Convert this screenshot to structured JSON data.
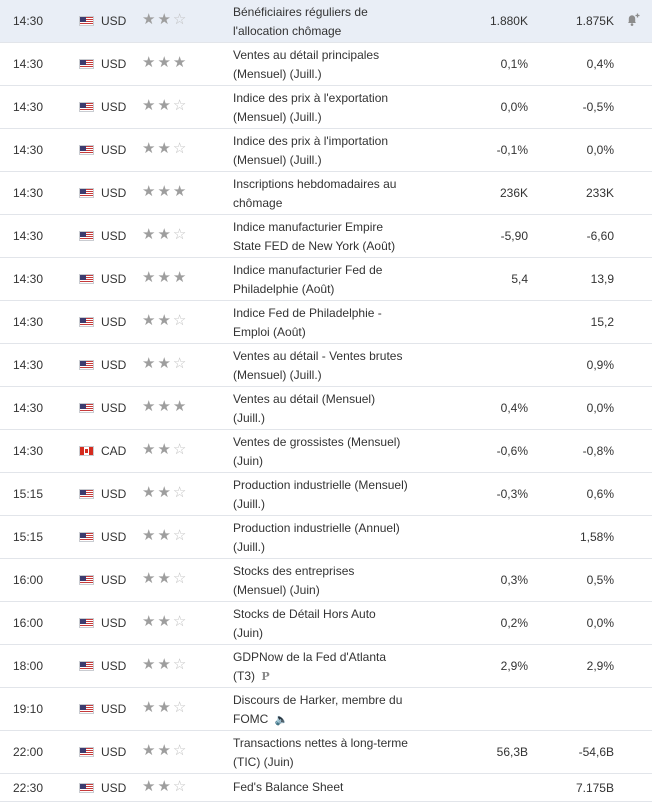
{
  "calendar": {
    "rows": [
      {
        "time": "14:30",
        "currency": "USD",
        "flag": "us",
        "stars": 2,
        "event_line1": "Bénéficiaires réguliers de",
        "event_line2": "l'allocation chômage",
        "tag": "",
        "actual": "1.880K",
        "forecast": "1.875K",
        "alert": true,
        "highlight": true
      },
      {
        "time": "14:30",
        "currency": "USD",
        "flag": "us",
        "stars": 3,
        "event_line1": "Ventes au détail principales",
        "event_line2": "(Mensuel) (Juill.)",
        "tag": "",
        "actual": "0,1%",
        "forecast": "0,4%",
        "alert": false,
        "highlight": false
      },
      {
        "time": "14:30",
        "currency": "USD",
        "flag": "us",
        "stars": 2,
        "event_line1": "Indice des prix à l'exportation",
        "event_line2": "(Mensuel) (Juill.)",
        "tag": "",
        "actual": "0,0%",
        "forecast": "-0,5%",
        "alert": false,
        "highlight": false
      },
      {
        "time": "14:30",
        "currency": "USD",
        "flag": "us",
        "stars": 2,
        "event_line1": "Indice des prix à l'importation",
        "event_line2": "(Mensuel) (Juill.)",
        "tag": "",
        "actual": "-0,1%",
        "forecast": "0,0%",
        "alert": false,
        "highlight": false
      },
      {
        "time": "14:30",
        "currency": "USD",
        "flag": "us",
        "stars": 3,
        "event_line1": "Inscriptions hebdomadaires au",
        "event_line2": "chômage",
        "tag": "",
        "actual": "236K",
        "forecast": "233K",
        "alert": false,
        "highlight": false
      },
      {
        "time": "14:30",
        "currency": "USD",
        "flag": "us",
        "stars": 2,
        "event_line1": "Indice manufacturier Empire",
        "event_line2": "State FED de New York (Août)",
        "tag": "",
        "actual": "-5,90",
        "forecast": "-6,60",
        "alert": false,
        "highlight": false
      },
      {
        "time": "14:30",
        "currency": "USD",
        "flag": "us",
        "stars": 3,
        "event_line1": "Indice manufacturier Fed de",
        "event_line2": "Philadelphie (Août)",
        "tag": "",
        "actual": "5,4",
        "forecast": "13,9",
        "alert": false,
        "highlight": false
      },
      {
        "time": "14:30",
        "currency": "USD",
        "flag": "us",
        "stars": 2,
        "event_line1": "Indice Fed de Philadelphie -",
        "event_line2": "Emploi (Août)",
        "tag": "",
        "actual": "",
        "forecast": "15,2",
        "alert": false,
        "highlight": false
      },
      {
        "time": "14:30",
        "currency": "USD",
        "flag": "us",
        "stars": 2,
        "event_line1": "Ventes au détail - Ventes brutes",
        "event_line2": "(Mensuel) (Juill.)",
        "tag": "",
        "actual": "",
        "forecast": "0,9%",
        "alert": false,
        "highlight": false
      },
      {
        "time": "14:30",
        "currency": "USD",
        "flag": "us",
        "stars": 3,
        "event_line1": "Ventes au détail (Mensuel)",
        "event_line2": "(Juill.)",
        "tag": "",
        "actual": "0,4%",
        "forecast": "0,0%",
        "alert": false,
        "highlight": false
      },
      {
        "time": "14:30",
        "currency": "CAD",
        "flag": "ca",
        "stars": 2,
        "event_line1": "Ventes de grossistes (Mensuel)",
        "event_line2": "(Juin)",
        "tag": "",
        "actual": "-0,6%",
        "forecast": "-0,8%",
        "alert": false,
        "highlight": false
      },
      {
        "time": "15:15",
        "currency": "USD",
        "flag": "us",
        "stars": 2,
        "event_line1": "Production industrielle (Mensuel)",
        "event_line2": "(Juill.)",
        "tag": "",
        "actual": "-0,3%",
        "forecast": "0,6%",
        "alert": false,
        "highlight": false
      },
      {
        "time": "15:15",
        "currency": "USD",
        "flag": "us",
        "stars": 2,
        "event_line1": "Production industrielle (Annuel)",
        "event_line2": "(Juill.)",
        "tag": "",
        "actual": "",
        "forecast": "1,58%",
        "alert": false,
        "highlight": false
      },
      {
        "time": "16:00",
        "currency": "USD",
        "flag": "us",
        "stars": 2,
        "event_line1": "Stocks des entreprises",
        "event_line2": "(Mensuel) (Juin)",
        "tag": "",
        "actual": "0,3%",
        "forecast": "0,5%",
        "alert": false,
        "highlight": false
      },
      {
        "time": "16:00",
        "currency": "USD",
        "flag": "us",
        "stars": 2,
        "event_line1": "Stocks de Détail Hors Auto",
        "event_line2": "(Juin)",
        "tag": "",
        "actual": "0,2%",
        "forecast": "0,0%",
        "alert": false,
        "highlight": false
      },
      {
        "time": "18:00",
        "currency": "USD",
        "flag": "us",
        "stars": 2,
        "event_line1": "GDPNow de la Fed d'Atlanta",
        "event_line2": "(T3)",
        "tag": "P",
        "actual": "2,9%",
        "forecast": "2,9%",
        "alert": false,
        "highlight": false
      },
      {
        "time": "19:10",
        "currency": "USD",
        "flag": "us",
        "stars": 2,
        "event_line1": "Discours de Harker, membre du",
        "event_line2": "FOMC",
        "tag": "speaker",
        "actual": "",
        "forecast": "",
        "alert": false,
        "highlight": false
      },
      {
        "time": "22:00",
        "currency": "USD",
        "flag": "us",
        "stars": 2,
        "event_line1": "Transactions nettes à long-terme",
        "event_line2": "(TIC) (Juin)",
        "tag": "",
        "actual": "56,3B",
        "forecast": "-54,6B",
        "alert": false,
        "highlight": false
      },
      {
        "time": "22:30",
        "currency": "USD",
        "flag": "us",
        "stars": 2,
        "event_line1": "Fed's Balance Sheet",
        "event_line2": "",
        "tag": "",
        "actual": "",
        "forecast": "7.175B",
        "alert": false,
        "highlight": false
      }
    ]
  },
  "icons": {
    "star": "★",
    "star_empty": "☆",
    "speaker": "🔈",
    "alert": "bell-plus-icon"
  },
  "colors": {
    "highlight_row": "#e9eef6",
    "border": "#e2e5ea",
    "star_on": "#9e9e9e",
    "star_off": "#bfbfbf"
  }
}
